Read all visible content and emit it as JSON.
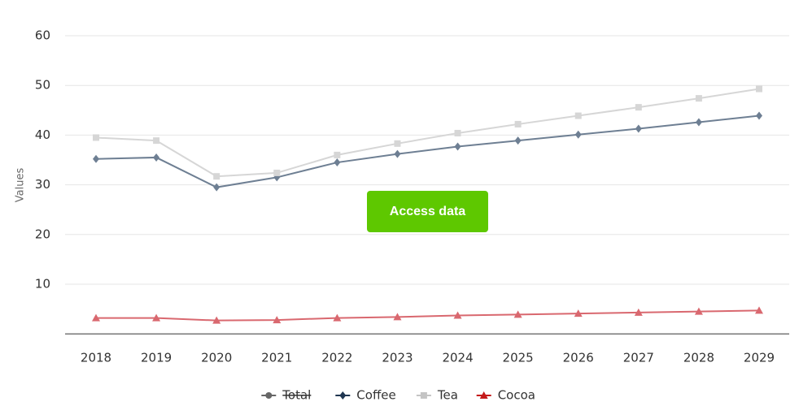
{
  "chart_data": {
    "type": "line",
    "y_label": "Values",
    "categories": [
      "2018",
      "2019",
      "2020",
      "2021",
      "2022",
      "2023",
      "2024",
      "2025",
      "2026",
      "2027",
      "2028",
      "2029"
    ],
    "ylim": [
      0,
      60
    ],
    "yticks": [
      10,
      20,
      30,
      40,
      50,
      60
    ],
    "grid": true,
    "legend": "bottom",
    "series": [
      {
        "name": "Total",
        "color": "#666666",
        "marker": "circle",
        "visible": false
      },
      {
        "name": "Coffee",
        "color": "#6e7f93",
        "legend_color": "#1f3550",
        "marker": "diamond",
        "values": [
          35.2,
          35.5,
          29.5,
          31.5,
          34.5,
          36.2,
          37.7,
          38.9,
          40.1,
          41.3,
          42.6,
          43.9
        ]
      },
      {
        "name": "Tea",
        "color": "#d6d6d6",
        "legend_color": "#c4c4c4",
        "marker": "square",
        "values": [
          39.5,
          38.9,
          31.7,
          32.4,
          36.0,
          38.3,
          40.4,
          42.2,
          43.9,
          45.6,
          47.4,
          49.3
        ]
      },
      {
        "name": "Cocoa",
        "color": "#d9686f",
        "legend_color": "#c41a1a",
        "marker": "triangle",
        "values": [
          3.2,
          3.2,
          2.7,
          2.8,
          3.2,
          3.4,
          3.7,
          3.9,
          4.1,
          4.3,
          4.5,
          4.7
        ]
      }
    ]
  },
  "button": "Access data"
}
